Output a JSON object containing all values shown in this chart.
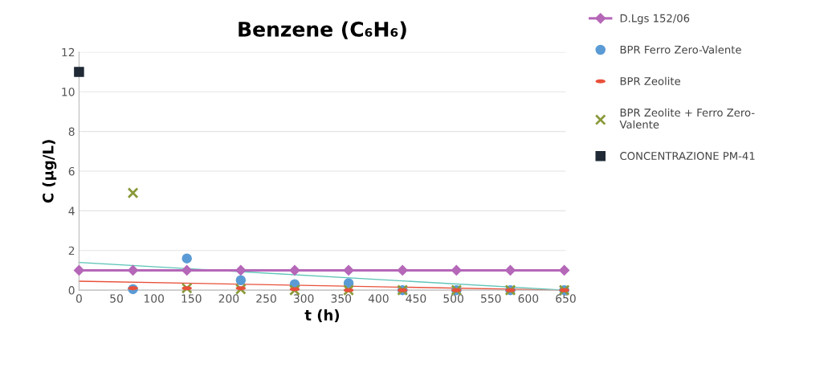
{
  "chart_data": {
    "type": "scatter",
    "title": "Benzene (C₆H₆)",
    "xlabel": "t (h)",
    "ylabel": "C (µg/L)",
    "xlim": [
      0,
      650
    ],
    "xticks": [
      0,
      50,
      100,
      150,
      200,
      250,
      300,
      350,
      400,
      450,
      500,
      550,
      600,
      650
    ],
    "ylim": [
      0,
      12
    ],
    "yticks": [
      0,
      2,
      4,
      6,
      8,
      10,
      12
    ],
    "grid": "y",
    "legend": "right",
    "series": [
      {
        "name": "D.Lgs 152/06",
        "type": "line",
        "marker": "diamond",
        "color": "#b567b8",
        "x": [
          0,
          72,
          144,
          216,
          288,
          360,
          432,
          504,
          576,
          648
        ],
        "values": [
          1,
          1,
          1,
          1,
          1,
          1,
          1,
          1,
          1,
          1
        ]
      },
      {
        "name": "BPR Ferro Zero-Valente",
        "marker": "circle",
        "color": "#5b9bd5",
        "x": [
          72,
          144,
          216,
          288,
          360,
          432,
          504,
          576,
          648
        ],
        "values": [
          0.05,
          1.6,
          0.5,
          0.3,
          0.35,
          0,
          0,
          0,
          0
        ]
      },
      {
        "name": "BPR Zeolite",
        "color": "#e8503a",
        "x": [
          72,
          144,
          216,
          288,
          360,
          432,
          504,
          576,
          648
        ],
        "values": [
          0.1,
          0.1,
          0.1,
          0.05,
          0,
          0,
          0,
          0,
          0
        ]
      },
      {
        "name": "BPR Zeolite + Ferro Zero-Valente",
        "marker": "cross",
        "color": "#8a9a3a",
        "x": [
          72,
          144,
          216,
          288,
          360,
          432,
          504,
          576,
          648
        ],
        "values": [
          4.9,
          0.1,
          0.05,
          0,
          0,
          0,
          0,
          0,
          0
        ]
      },
      {
        "name": "CONCENTRAZIONE PM-41",
        "marker": "square",
        "color": "#1f2a36",
        "x": [
          0
        ],
        "values": [
          11
        ]
      },
      {
        "type": "line",
        "marker": "none",
        "color": "#e8503a",
        "x": [
          0,
          648
        ],
        "values": [
          0.45,
          0
        ]
      },
      {
        "type": "line",
        "marker": "none",
        "color": "#5fc4b8",
        "x": [
          0,
          648
        ],
        "values": [
          1.4,
          0
        ]
      }
    ]
  }
}
